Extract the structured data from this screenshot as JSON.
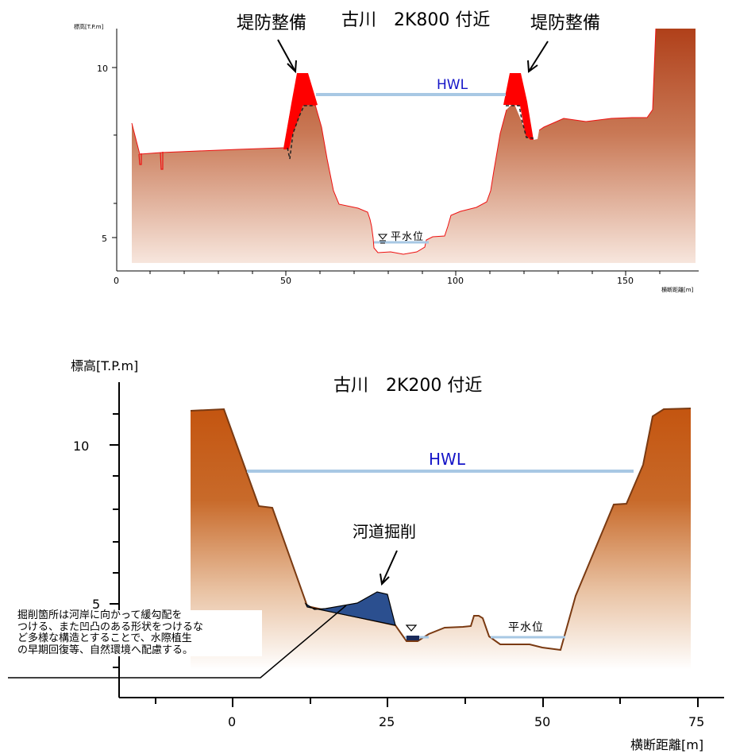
{
  "top": {
    "title": "古川　2K800 付近",
    "ylabel": "標高[T.P.m]",
    "xlabel": "横断距離[m]",
    "y_ticks": [
      "10",
      "5"
    ],
    "x_ticks": [
      "0",
      "50",
      "100",
      "150"
    ],
    "hwl_label": "HWL",
    "water_label": "平水位",
    "levee_left_label": "堤防整備",
    "levee_right_label": "堤防整備",
    "colors": {
      "ground_top": "#b5451d",
      "ground_bottom": "#f6e5dc",
      "levee": "#ff0000",
      "hwl": "#a8c8e4",
      "hwl_text": "#1515c8"
    }
  },
  "bottom": {
    "title": "古川　2K200 付近",
    "ylabel": "標高[T.P.m]",
    "xlabel": "横断距離[m]",
    "y_ticks": [
      "10",
      "5"
    ],
    "x_ticks": [
      "0",
      "25",
      "50",
      "75"
    ],
    "hwl_label": "HWL",
    "water_label": "平水位",
    "excavation_label": "河道掘削",
    "note": "掘削箇所は河岸に向かって緩勾配を\nつける、また凹凸のある形状をつけるな\nど多様な構造とすることで、水際植生\nの早期回復等、自然環境へ配慮する。",
    "colors": {
      "ground_top": "#c65a14",
      "ground_bottom": "#fbeee6",
      "excavation": "#2b4f8f",
      "hwl": "#a8c8e4",
      "hwl_text": "#1515c8"
    }
  }
}
